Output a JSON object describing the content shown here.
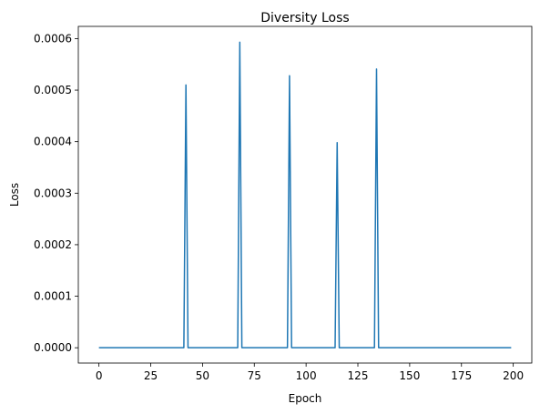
{
  "chart_data": {
    "type": "line",
    "title": "Diversity Loss",
    "xlabel": "Epoch",
    "ylabel": "Loss",
    "xlim": [
      -9.95,
      208.95
    ],
    "ylim": [
      -2.97e-05,
      0.0006237
    ],
    "xticks": [
      0,
      25,
      50,
      75,
      100,
      125,
      150,
      175,
      200
    ],
    "xtick_labels": [
      "0",
      "25",
      "50",
      "75",
      "100",
      "125",
      "150",
      "175",
      "200"
    ],
    "yticks": [
      0,
      0.0001,
      0.0002,
      0.0003,
      0.0004,
      0.0005,
      0.0006
    ],
    "ytick_labels": [
      "0.0000",
      "0.0001",
      "0.0002",
      "0.0003",
      "0.0004",
      "0.0005",
      "0.0006"
    ],
    "grid": false,
    "series": [
      {
        "color": "#1f77b4",
        "x": [
          0,
          41,
          42,
          43,
          67,
          68,
          69,
          91,
          92,
          93,
          114,
          115,
          116,
          133,
          134,
          135,
          199
        ],
        "y": [
          0,
          0,
          0.00051,
          0,
          0,
          0.000593,
          0,
          0,
          0.000528,
          0,
          0,
          0.000398,
          0,
          0,
          0.000541,
          0,
          0
        ]
      }
    ]
  }
}
